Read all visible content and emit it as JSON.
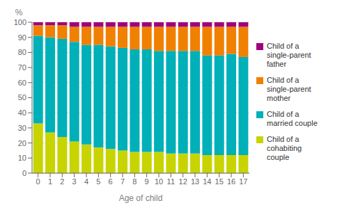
{
  "chart_data": {
    "type": "bar",
    "stacked": true,
    "categories": [
      "0",
      "1",
      "2",
      "3",
      "4",
      "5",
      "6",
      "7",
      "8",
      "9",
      "10",
      "11",
      "12",
      "13",
      "14",
      "15",
      "16",
      "17"
    ],
    "series": [
      {
        "name": "Child of a\ncohabiting\ncouple",
        "color": "#c8d400",
        "values": [
          33,
          27,
          24,
          21,
          19,
          17,
          16,
          15,
          14,
          14,
          14,
          13,
          13,
          13,
          12,
          12,
          12,
          12
        ]
      },
      {
        "name": "Child of a\nmarried couple",
        "color": "#00b0b8",
        "values": [
          58,
          63,
          65,
          66,
          66,
          68,
          68,
          68,
          68,
          68,
          67,
          68,
          68,
          68,
          66,
          66,
          67,
          65
        ]
      },
      {
        "name": "Child of a\nsingle-parent\nmother",
        "color": "#f08000",
        "values": [
          7,
          8,
          9,
          10,
          12,
          12,
          13,
          14,
          15,
          15,
          16,
          16,
          16,
          16,
          19,
          19,
          18,
          20
        ]
      },
      {
        "name": "Child of a\nsingle-parent\nfather",
        "color": "#a0007c",
        "values": [
          2,
          2,
          2,
          3,
          3,
          3,
          3,
          3,
          3,
          3,
          3,
          3,
          3,
          3,
          3,
          3,
          3,
          3
        ]
      }
    ],
    "xlabel": "Age of child",
    "ylabel": "%",
    "ylim": [
      0,
      100
    ],
    "yticks": [
      0,
      10,
      20,
      30,
      40,
      50,
      60,
      70,
      80,
      90,
      100
    ],
    "grid": true,
    "legend": "right"
  }
}
